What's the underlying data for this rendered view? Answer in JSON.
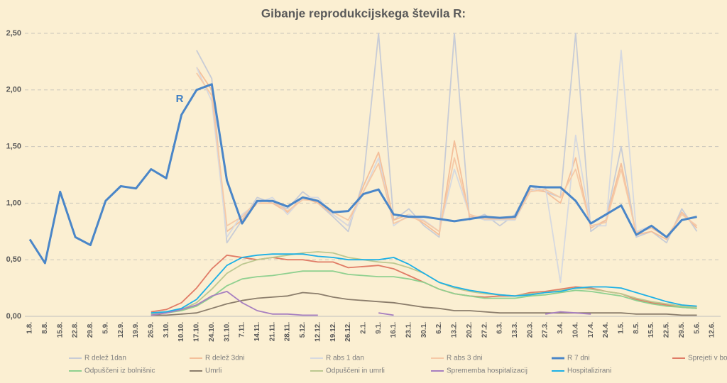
{
  "chart_data": {
    "type": "line",
    "title": "Gibanje reprodukcijskega števila R:",
    "annotation": "R",
    "categories": [
      "1.8.",
      "8.8.",
      "15.8.",
      "22.8.",
      "29.8.",
      "5.9.",
      "12.9.",
      "19.9.",
      "26.9.",
      "3.10.",
      "10.10.",
      "17.10.",
      "24.10.",
      "31.10.",
      "7.11.",
      "14.11.",
      "21.11.",
      "28.11.",
      "5.12.",
      "12.12.",
      "19.12.",
      "26.12.",
      "2.1.",
      "9.1.",
      "16.1.",
      "23.1.",
      "30.1.",
      "6.2.",
      "13.2.",
      "20.2.",
      "27.2.",
      "6.3.",
      "13.3.",
      "20.3.",
      "27.3.",
      "3.4.",
      "10.4.",
      "17.4.",
      "24.4.",
      "1.5.",
      "8.5.",
      "15.5.",
      "22.5.",
      "29.5.",
      "5.6.",
      "12.6."
    ],
    "ylim": [
      0,
      2.5
    ],
    "yticks": [
      {
        "value": 0,
        "label": "0,00"
      },
      {
        "value": 0.5,
        "label": "0,50"
      },
      {
        "value": 1,
        "label": "1,00"
      },
      {
        "value": 1.5,
        "label": "1,50"
      },
      {
        "value": 2,
        "label": "2,00"
      },
      {
        "value": 2.5,
        "label": "2,50"
      }
    ],
    "grid": true,
    "legend": "bottom",
    "series": [
      {
        "name": "R delež 1dan",
        "color": "#c8ccd6",
        "values": [
          null,
          null,
          null,
          null,
          null,
          null,
          null,
          null,
          null,
          null,
          null,
          2.35,
          2.1,
          0.65,
          0.85,
          1.05,
          1.0,
          0.95,
          1.1,
          1.0,
          0.88,
          0.75,
          1.2,
          2.5,
          0.85,
          0.95,
          0.8,
          0.7,
          2.5,
          0.85,
          0.9,
          0.8,
          0.9,
          1.15,
          1.1,
          1.05,
          2.5,
          0.75,
          0.85,
          1.5,
          0.7,
          0.75,
          0.65,
          0.95,
          0.75,
          null
        ]
      },
      {
        "name": "R delež 3dni",
        "color": "#f4bf9a",
        "values": [
          null,
          null,
          null,
          null,
          null,
          null,
          null,
          null,
          null,
          null,
          null,
          2.2,
          2.0,
          0.75,
          0.85,
          1.0,
          1.0,
          0.92,
          1.05,
          1.0,
          0.9,
          0.8,
          1.15,
          1.45,
          0.85,
          0.9,
          0.82,
          0.72,
          1.55,
          0.88,
          0.88,
          0.85,
          0.88,
          1.12,
          1.1,
          1.0,
          1.4,
          0.78,
          0.85,
          1.35,
          0.72,
          0.75,
          0.68,
          0.92,
          0.78,
          null
        ]
      },
      {
        "name": "R abs 1 dan",
        "color": "#d6d9e0",
        "values": [
          null,
          null,
          null,
          null,
          null,
          null,
          null,
          null,
          null,
          null,
          null,
          2.2,
          1.9,
          0.7,
          0.9,
          1.0,
          1.05,
          0.9,
          1.05,
          1.05,
          0.9,
          0.8,
          1.1,
          1.4,
          0.8,
          0.9,
          0.85,
          0.75,
          1.3,
          0.9,
          0.85,
          0.85,
          0.85,
          1.1,
          1.15,
          0.3,
          1.6,
          0.8,
          0.8,
          2.35,
          0.75,
          0.8,
          0.7,
          0.9,
          0.8,
          null
        ]
      },
      {
        "name": "R abs 3 dni",
        "color": "#f6c9a6",
        "values": [
          null,
          null,
          null,
          null,
          null,
          null,
          null,
          null,
          null,
          null,
          null,
          2.15,
          1.95,
          0.8,
          0.88,
          1.02,
          1.02,
          0.93,
          1.03,
          1.02,
          0.92,
          0.85,
          1.1,
          1.35,
          0.82,
          0.88,
          0.84,
          0.75,
          1.4,
          0.9,
          0.86,
          0.86,
          0.86,
          1.1,
          1.12,
          1.05,
          1.3,
          0.8,
          0.83,
          1.3,
          0.74,
          0.78,
          0.7,
          0.9,
          0.8,
          null
        ]
      },
      {
        "name": "R 7 dni",
        "color": "#4a86c8",
        "values": [
          0.68,
          0.47,
          1.1,
          0.7,
          0.63,
          1.02,
          1.15,
          1.13,
          1.3,
          1.22,
          1.78,
          2.0,
          2.05,
          1.2,
          0.82,
          1.02,
          1.02,
          0.97,
          1.05,
          1.02,
          0.92,
          0.93,
          1.08,
          1.12,
          0.9,
          0.88,
          0.88,
          0.86,
          0.84,
          0.86,
          0.88,
          0.87,
          0.88,
          1.15,
          1.14,
          1.14,
          1.02,
          0.82,
          0.9,
          0.98,
          0.72,
          0.8,
          0.7,
          0.85,
          0.88,
          null
        ]
      },
      {
        "name": "Sprejeti v bolnišnice",
        "color": "#e07b66",
        "values": [
          null,
          null,
          null,
          null,
          null,
          null,
          null,
          null,
          0.04,
          0.06,
          0.12,
          0.25,
          0.42,
          0.54,
          0.52,
          0.5,
          0.52,
          0.5,
          0.5,
          0.48,
          0.48,
          0.43,
          0.44,
          0.45,
          0.42,
          0.36,
          0.3,
          0.24,
          0.2,
          0.18,
          0.17,
          0.18,
          0.18,
          0.21,
          0.22,
          0.24,
          0.26,
          0.25,
          0.22,
          0.2,
          0.15,
          0.12,
          0.1,
          0.08,
          0.07,
          null
        ]
      },
      {
        "name": "Odpuščeni iz bolnišnic",
        "color": "#8fd08f",
        "values": [
          null,
          null,
          null,
          null,
          null,
          null,
          null,
          null,
          0.02,
          0.03,
          0.05,
          0.09,
          0.17,
          0.27,
          0.33,
          0.35,
          0.36,
          0.38,
          0.4,
          0.4,
          0.4,
          0.37,
          0.36,
          0.35,
          0.35,
          0.33,
          0.3,
          0.24,
          0.2,
          0.18,
          0.16,
          0.16,
          0.16,
          0.18,
          0.19,
          0.21,
          0.23,
          0.22,
          0.2,
          0.18,
          0.14,
          0.11,
          0.09,
          0.08,
          0.07,
          null
        ]
      },
      {
        "name": "Umrli",
        "color": "#8b7d6b",
        "values": [
          null,
          null,
          null,
          null,
          null,
          null,
          null,
          null,
          0.01,
          0.01,
          0.02,
          0.03,
          0.07,
          0.11,
          0.14,
          0.16,
          0.17,
          0.18,
          0.21,
          0.2,
          0.17,
          0.15,
          0.14,
          0.13,
          0.12,
          0.1,
          0.08,
          0.07,
          0.05,
          0.05,
          0.04,
          0.03,
          0.03,
          0.03,
          0.03,
          0.03,
          0.03,
          0.03,
          0.03,
          0.03,
          0.02,
          0.02,
          0.02,
          0.01,
          0.01,
          null
        ]
      },
      {
        "name": "Odpuščeni in umrli",
        "color": "#bcc890",
        "values": [
          null,
          null,
          null,
          null,
          null,
          null,
          null,
          null,
          0.02,
          0.04,
          0.06,
          0.12,
          0.24,
          0.38,
          0.46,
          0.5,
          0.52,
          0.54,
          0.56,
          0.57,
          0.56,
          0.52,
          0.5,
          0.48,
          0.47,
          0.43,
          0.38,
          0.3,
          0.25,
          0.22,
          0.2,
          0.19,
          0.18,
          0.2,
          0.21,
          0.23,
          0.25,
          0.24,
          0.22,
          0.2,
          0.16,
          0.13,
          0.11,
          0.09,
          0.08,
          null
        ]
      },
      {
        "name": "Sprememba hospitalizacij",
        "color": "#a77fc0",
        "values": [
          null,
          null,
          null,
          null,
          null,
          null,
          null,
          null,
          0.01,
          0.03,
          0.06,
          0.1,
          0.18,
          0.22,
          0.12,
          0.05,
          0.02,
          0.02,
          0.01,
          0.01,
          null,
          null,
          null,
          0.03,
          0.01,
          null,
          null,
          null,
          null,
          null,
          null,
          null,
          null,
          null,
          0.02,
          0.04,
          0.03,
          0.02,
          null,
          null,
          null,
          null,
          null,
          null,
          null,
          null
        ]
      },
      {
        "name": "Hospitalizirani",
        "color": "#1cb0e6",
        "values": [
          null,
          null,
          null,
          null,
          null,
          null,
          null,
          null,
          0.03,
          0.04,
          0.07,
          0.15,
          0.3,
          0.45,
          0.52,
          0.54,
          0.55,
          0.55,
          0.55,
          0.53,
          0.52,
          0.5,
          0.5,
          0.5,
          0.52,
          0.46,
          0.38,
          0.3,
          0.26,
          0.23,
          0.21,
          0.19,
          0.18,
          0.19,
          0.21,
          0.22,
          0.25,
          0.26,
          0.26,
          0.25,
          0.21,
          0.17,
          0.13,
          0.1,
          0.09,
          null
        ]
      }
    ]
  }
}
